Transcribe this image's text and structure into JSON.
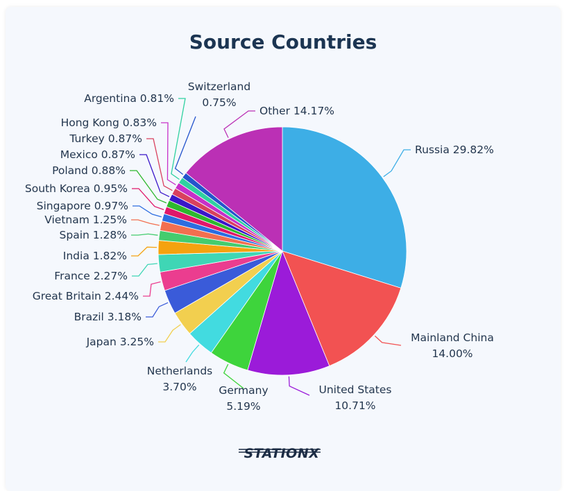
{
  "chart_data": {
    "type": "pie",
    "title": "Source Countries",
    "slices": [
      {
        "label": "Russia",
        "value": 29.82,
        "value_label": "29.82%",
        "color": "#3daee6"
      },
      {
        "label": "Mainland China",
        "value": 14.0,
        "value_label": "14.00%",
        "color": "#f25252"
      },
      {
        "label": "United States",
        "value": 10.71,
        "value_label": "10.71%",
        "color": "#9b1bd9"
      },
      {
        "label": "Germany",
        "value": 5.19,
        "value_label": "5.19%",
        "color": "#3ed43c"
      },
      {
        "label": "Netherlands",
        "value": 3.7,
        "value_label": "3.70%",
        "color": "#42dbe0"
      },
      {
        "label": "Japan",
        "value": 3.25,
        "value_label": "3.25%",
        "color": "#f2cf4f"
      },
      {
        "label": "Brazil",
        "value": 3.18,
        "value_label": "3.18%",
        "color": "#3a5bd9"
      },
      {
        "label": "Great Britain",
        "value": 2.44,
        "value_label": "2.44%",
        "color": "#eb3d8f"
      },
      {
        "label": "France",
        "value": 2.27,
        "value_label": "2.27%",
        "color": "#3fd6b5"
      },
      {
        "label": "India",
        "value": 1.82,
        "value_label": "1.82%",
        "color": "#f5a20f"
      },
      {
        "label": "Spain",
        "value": 1.28,
        "value_label": "1.28%",
        "color": "#44cc6e"
      },
      {
        "label": "Vietnam",
        "value": 1.25,
        "value_label": "1.25%",
        "color": "#f26f4f"
      },
      {
        "label": "Singapore",
        "value": 0.97,
        "value_label": "0.97%",
        "color": "#2d6de0"
      },
      {
        "label": "South Korea",
        "value": 0.95,
        "value_label": "0.95%",
        "color": "#e0176a"
      },
      {
        "label": "Poland",
        "value": 0.88,
        "value_label": "0.88%",
        "color": "#2eb82e"
      },
      {
        "label": "Mexico",
        "value": 0.87,
        "value_label": "0.87%",
        "color": "#3a16c9"
      },
      {
        "label": "Turkey",
        "value": 0.87,
        "value_label": "0.87%",
        "color": "#d9405e"
      },
      {
        "label": "Hong Kong",
        "value": 0.83,
        "value_label": "0.83%",
        "color": "#c730c9"
      },
      {
        "label": "Argentina",
        "value": 0.81,
        "value_label": "0.81%",
        "color": "#2fd1a0"
      },
      {
        "label": "Switzerland",
        "value": 0.75,
        "value_label": "0.75%",
        "color": "#2454cc"
      },
      {
        "label": "Other",
        "value": 14.17,
        "value_label": "14.17%",
        "color": "#bb30b5"
      }
    ]
  },
  "logo": {
    "text": "STATIONX"
  }
}
